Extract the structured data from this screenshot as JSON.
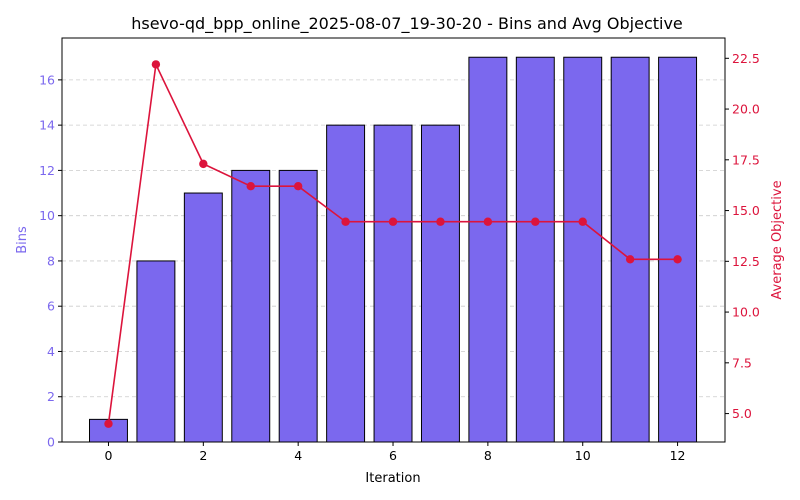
{
  "chart_data": {
    "type": "bar+line",
    "title": "hsevo-qd_bpp_online_2025-08-07_19-30-20 - Bins and Avg Objective",
    "xlabel": "Iteration",
    "ylabel_left": "Bins",
    "ylabel_right": "Average Objective",
    "x": [
      0,
      1,
      2,
      3,
      4,
      5,
      6,
      7,
      8,
      9,
      10,
      11,
      12
    ],
    "series": [
      {
        "name": "Bins",
        "kind": "bar",
        "axis": "left",
        "color": "#7b68ee",
        "values": [
          1,
          8,
          11,
          12,
          12,
          14,
          14,
          14,
          17,
          17,
          17,
          17,
          17
        ]
      },
      {
        "name": "Average Objective",
        "kind": "line",
        "axis": "right",
        "color": "#dc143c",
        "values": [
          4.5,
          22.2,
          17.3,
          16.2,
          16.2,
          14.45,
          14.45,
          14.45,
          14.45,
          14.45,
          14.45,
          12.6,
          12.6
        ]
      }
    ],
    "xlim": [
      -0.98,
      13.0
    ],
    "xticks": [
      "0",
      "2",
      "4",
      "6",
      "8",
      "10",
      "12"
    ],
    "ylim_left": [
      0,
      17.85
    ],
    "yticks_left": [
      "0",
      "2",
      "4",
      "6",
      "8",
      "10",
      "12",
      "14",
      "16"
    ],
    "ylim_right": [
      3.6,
      23.5
    ],
    "yticks_right": [
      "5.0",
      "7.5",
      "10.0",
      "12.5",
      "15.0",
      "17.5",
      "20.0",
      "22.5"
    ],
    "grid": "horizontal-dashed",
    "left_axis_color": "#7b68ee",
    "right_axis_color": "#dc143c"
  }
}
